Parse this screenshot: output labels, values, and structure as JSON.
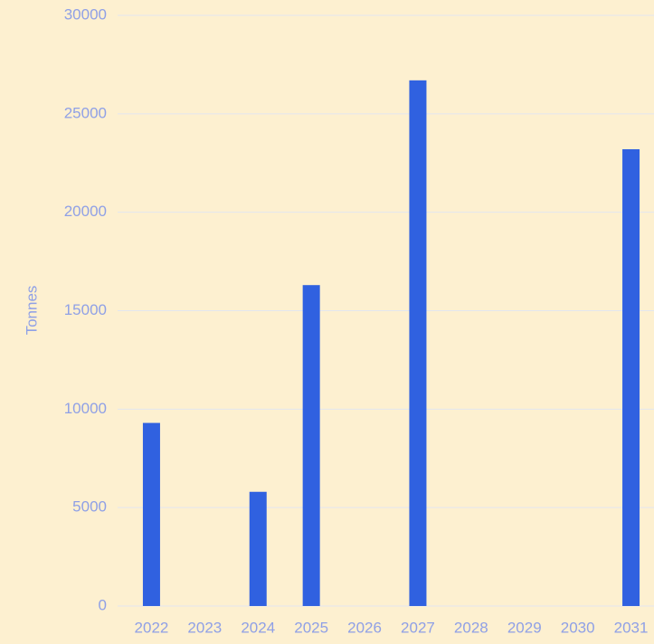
{
  "chart_data": {
    "type": "bar",
    "y_label": "Tonnes",
    "categories": [
      "2022",
      "2023",
      "2024",
      "2025",
      "2026",
      "2027",
      "2028",
      "2029",
      "2030",
      "2031"
    ],
    "values": [
      9300,
      0,
      5800,
      16300,
      0,
      26700,
      0,
      0,
      0,
      23200
    ],
    "color": "#3061e0",
    "ylim": [
      0,
      30000
    ],
    "yticks": [
      0,
      5000,
      10000,
      15000,
      20000,
      25000,
      30000
    ],
    "grid": true
  }
}
